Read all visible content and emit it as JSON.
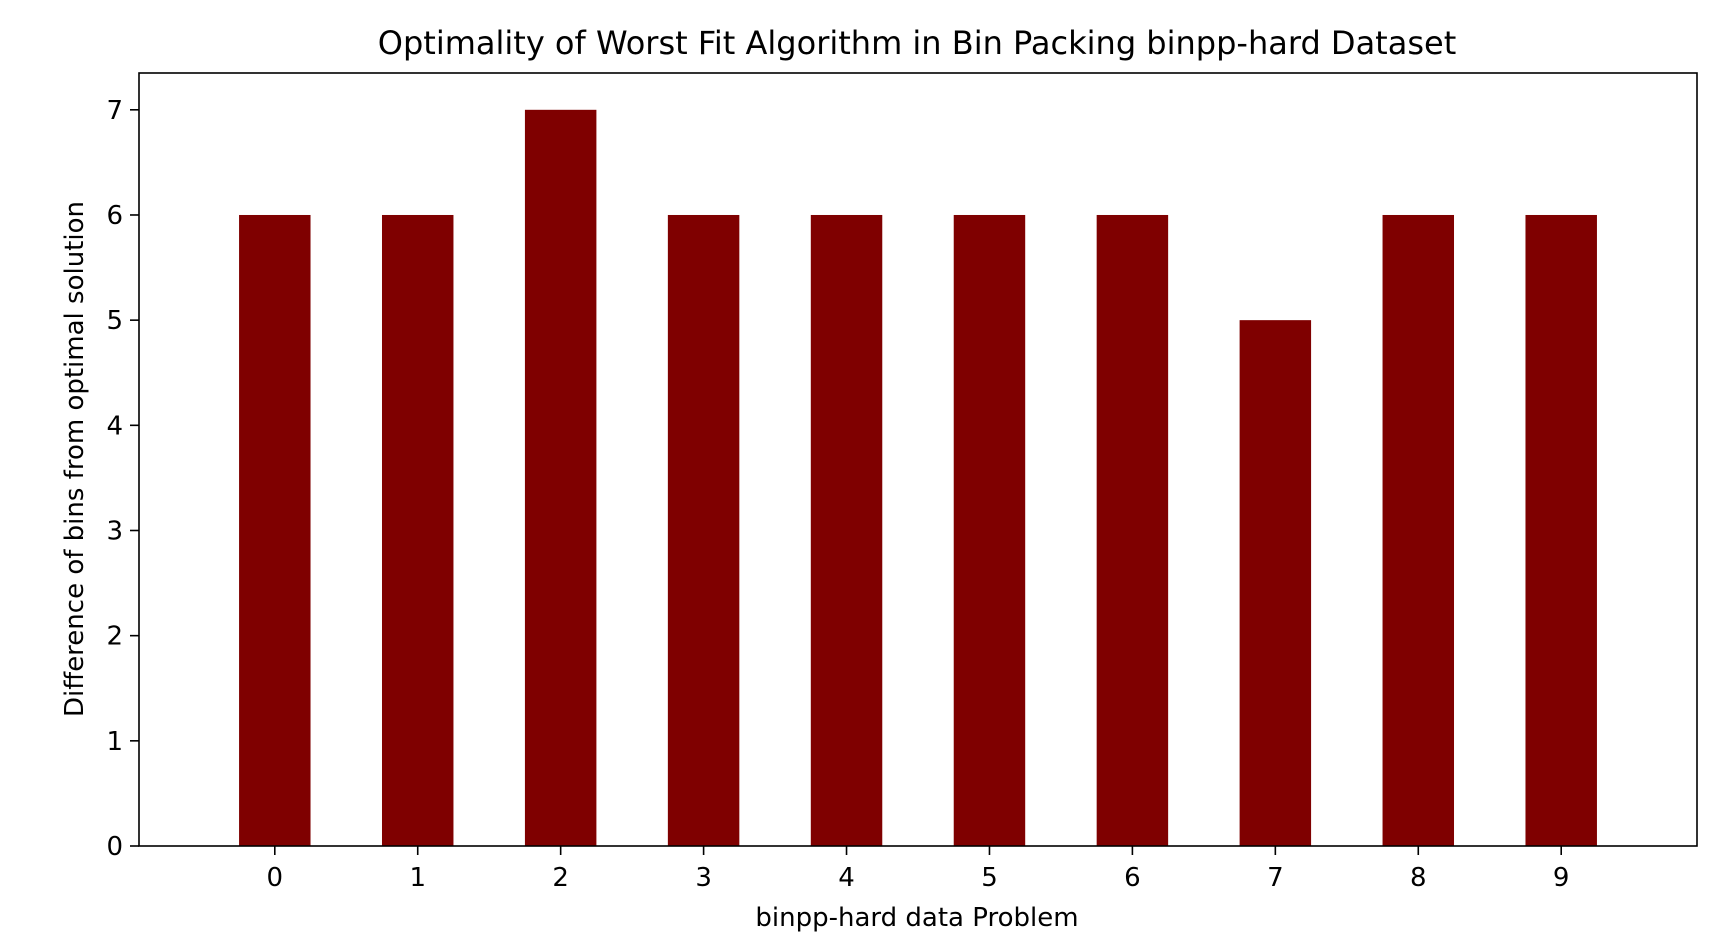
{
  "chart_data": {
    "type": "bar",
    "title": "Optimality of Worst Fit Algorithm in Bin Packing binpp-hard Dataset",
    "xlabel": "binpp-hard data Problem",
    "ylabel": "Difference of bins from optimal solution",
    "categories": [
      "0",
      "1",
      "2",
      "3",
      "4",
      "5",
      "6",
      "7",
      "8",
      "9"
    ],
    "values": [
      6,
      6,
      7,
      6,
      6,
      6,
      6,
      5,
      6,
      6
    ],
    "yticks": [
      "0",
      "1",
      "2",
      "3",
      "4",
      "5",
      "6",
      "7"
    ],
    "ylim": [
      0,
      7.35
    ],
    "grid": false,
    "legend": "none",
    "bar_color": "#7f0000"
  }
}
